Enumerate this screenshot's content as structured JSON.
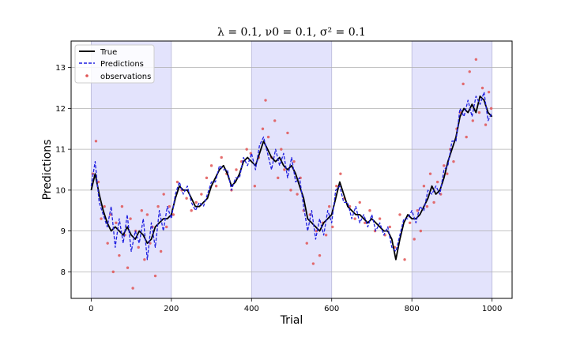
{
  "chart_data": {
    "type": "line",
    "title": "λ = 0.1, ν0 = 0.1, σ² = 0.1",
    "xlabel": "Trial",
    "ylabel": "Predictions",
    "xlim": [
      -50,
      1050
    ],
    "ylim": [
      7.35,
      13.65
    ],
    "xticks": [
      0,
      200,
      400,
      600,
      800,
      1000
    ],
    "yticks": [
      8,
      9,
      10,
      11,
      12,
      13
    ],
    "grid": "horizontal",
    "legend_position": "top-left",
    "shaded_regions": [
      [
        0,
        200
      ],
      [
        400,
        600
      ],
      [
        800,
        1000
      ]
    ],
    "colors": {
      "true": "#000000",
      "predictions": "#1f1fe0",
      "observations": "#e05555",
      "shade": "#e3e3fc"
    },
    "legend": [
      "True",
      "Predictions",
      "observations"
    ],
    "series": [
      {
        "name": "True",
        "style": "solid",
        "x": [
          0,
          10,
          20,
          30,
          40,
          50,
          60,
          70,
          80,
          90,
          100,
          110,
          120,
          130,
          140,
          150,
          160,
          170,
          180,
          190,
          200,
          210,
          220,
          230,
          240,
          250,
          260,
          270,
          280,
          290,
          300,
          310,
          320,
          330,
          340,
          350,
          360,
          370,
          380,
          390,
          400,
          410,
          420,
          430,
          440,
          450,
          460,
          470,
          480,
          490,
          500,
          510,
          520,
          530,
          540,
          550,
          560,
          570,
          580,
          590,
          600,
          610,
          620,
          630,
          640,
          650,
          660,
          670,
          680,
          690,
          700,
          710,
          720,
          730,
          740,
          750,
          760,
          770,
          780,
          790,
          800,
          810,
          820,
          830,
          840,
          850,
          860,
          870,
          880,
          890,
          900,
          910,
          920,
          930,
          940,
          950,
          960,
          970,
          980,
          990,
          1000
        ],
        "y": [
          10.0,
          10.4,
          9.9,
          9.5,
          9.2,
          9.0,
          9.1,
          9.0,
          8.9,
          9.1,
          8.9,
          8.8,
          9.0,
          8.9,
          8.7,
          8.8,
          9.1,
          9.2,
          9.3,
          9.3,
          9.4,
          9.8,
          10.1,
          10.0,
          10.0,
          9.8,
          9.6,
          9.6,
          9.7,
          9.8,
          10.1,
          10.3,
          10.5,
          10.6,
          10.4,
          10.1,
          10.2,
          10.4,
          10.7,
          10.8,
          10.7,
          10.6,
          10.9,
          11.2,
          11.0,
          10.8,
          10.7,
          10.8,
          10.6,
          10.5,
          10.6,
          10.4,
          10.1,
          9.8,
          9.3,
          9.2,
          9.1,
          9.0,
          9.2,
          9.3,
          9.4,
          9.8,
          10.2,
          9.9,
          9.6,
          9.5,
          9.4,
          9.4,
          9.3,
          9.2,
          9.3,
          9.2,
          9.1,
          9.0,
          9.0,
          8.8,
          8.3,
          8.8,
          9.2,
          9.4,
          9.3,
          9.3,
          9.4,
          9.6,
          9.8,
          10.1,
          9.9,
          10.0,
          10.3,
          10.7,
          11.0,
          11.3,
          11.8,
          12.0,
          11.9,
          12.1,
          11.9,
          12.3,
          12.2,
          11.9,
          11.8
        ],
        "color": "#000000"
      },
      {
        "name": "Predictions",
        "style": "dashed",
        "x": [
          0,
          10,
          20,
          30,
          40,
          50,
          60,
          70,
          80,
          90,
          100,
          110,
          120,
          130,
          140,
          150,
          160,
          170,
          180,
          190,
          200,
          210,
          220,
          230,
          240,
          250,
          260,
          270,
          280,
          290,
          300,
          310,
          320,
          330,
          340,
          350,
          360,
          370,
          380,
          390,
          400,
          410,
          420,
          430,
          440,
          450,
          460,
          470,
          480,
          490,
          500,
          510,
          520,
          530,
          540,
          550,
          560,
          570,
          580,
          590,
          600,
          610,
          620,
          630,
          640,
          650,
          660,
          670,
          680,
          690,
          700,
          710,
          720,
          730,
          740,
          750,
          760,
          770,
          780,
          790,
          800,
          810,
          820,
          830,
          840,
          850,
          860,
          870,
          880,
          890,
          900,
          910,
          920,
          930,
          940,
          950,
          960,
          970,
          980,
          990,
          1000
        ],
        "y": [
          10.1,
          10.7,
          9.7,
          9.4,
          9.1,
          9.6,
          8.6,
          9.3,
          8.7,
          9.4,
          8.5,
          9.0,
          8.7,
          9.3,
          8.3,
          9.2,
          8.6,
          9.5,
          9.0,
          9.6,
          9.3,
          9.9,
          10.2,
          9.9,
          10.1,
          9.7,
          9.5,
          9.7,
          9.6,
          9.9,
          10.2,
          10.2,
          10.6,
          10.5,
          10.5,
          10.0,
          10.3,
          10.3,
          10.8,
          10.6,
          10.9,
          10.5,
          11.1,
          11.3,
          10.9,
          10.5,
          11.0,
          10.6,
          10.9,
          10.3,
          10.8,
          10.2,
          10.3,
          9.6,
          9.0,
          9.5,
          8.8,
          9.3,
          8.9,
          9.5,
          9.2,
          10.0,
          10.1,
          9.7,
          9.7,
          9.3,
          9.6,
          9.2,
          9.4,
          9.1,
          9.4,
          9.0,
          9.2,
          8.9,
          9.1,
          8.6,
          8.5,
          8.9,
          9.3,
          9.3,
          9.5,
          9.2,
          9.6,
          9.5,
          10.0,
          9.9,
          10.1,
          9.9,
          10.5,
          10.6,
          11.2,
          11.2,
          12.0,
          11.8,
          12.2,
          11.8,
          12.3,
          12.1,
          12.4,
          11.7,
          11.9
        ],
        "color": "#1f1fe0"
      },
      {
        "name": "observations",
        "style": "scatter",
        "x": [
          4,
          12,
          18,
          25,
          33,
          41,
          48,
          55,
          62,
          70,
          77,
          84,
          91,
          98,
          104,
          111,
          118,
          126,
          133,
          140,
          147,
          153,
          160,
          167,
          174,
          181,
          188,
          195,
          205,
          215,
          226,
          238,
          250,
          262,
          275,
          288,
          300,
          312,
          325,
          338,
          350,
          362,
          375,
          388,
          398,
          408,
          418,
          428,
          435,
          442,
          450,
          458,
          466,
          474,
          482,
          490,
          498,
          506,
          514,
          522,
          530,
          538,
          546,
          554,
          562,
          570,
          578,
          586,
          594,
          602,
          612,
          622,
          632,
          645,
          658,
          670,
          683,
          695,
          708,
          720,
          733,
          745,
          757,
          770,
          782,
          795,
          806,
          814,
          822,
          830,
          838,
          846,
          855,
          864,
          872,
          880,
          888,
          896,
          904,
          912,
          920,
          928,
          936,
          944,
          952,
          960,
          968,
          976,
          984,
          992,
          998
        ],
        "y": [
          10.4,
          11.2,
          10.2,
          9.3,
          9.6,
          8.7,
          9.4,
          8.0,
          9.2,
          8.4,
          9.6,
          8.9,
          8.1,
          9.3,
          7.6,
          9.0,
          8.6,
          9.5,
          8.3,
          9.4,
          8.7,
          9.1,
          7.9,
          9.6,
          8.5,
          9.9,
          9.1,
          9.6,
          9.4,
          10.2,
          10.0,
          9.8,
          9.5,
          9.7,
          9.9,
          10.3,
          10.6,
          10.1,
          10.8,
          10.4,
          10.0,
          10.5,
          10.7,
          11.0,
          10.9,
          10.1,
          10.8,
          11.5,
          12.2,
          11.3,
          10.8,
          11.7,
          10.3,
          11.0,
          10.5,
          11.4,
          10.0,
          10.7,
          9.9,
          10.3,
          9.5,
          8.7,
          9.4,
          8.2,
          9.0,
          8.4,
          9.2,
          8.9,
          9.6,
          9.1,
          10.1,
          10.4,
          9.8,
          9.6,
          9.3,
          9.7,
          9.2,
          9.5,
          9.0,
          9.3,
          8.9,
          9.1,
          8.6,
          9.4,
          8.3,
          9.2,
          8.8,
          9.5,
          9.0,
          10.1,
          9.6,
          10.4,
          9.7,
          10.2,
          9.9,
          10.6,
          10.4,
          11.0,
          10.7,
          11.5,
          11.9,
          12.6,
          11.3,
          12.9,
          11.7,
          13.2,
          11.9,
          12.5,
          11.6,
          12.4,
          12.0
        ],
        "color": "#e05555"
      }
    ]
  }
}
